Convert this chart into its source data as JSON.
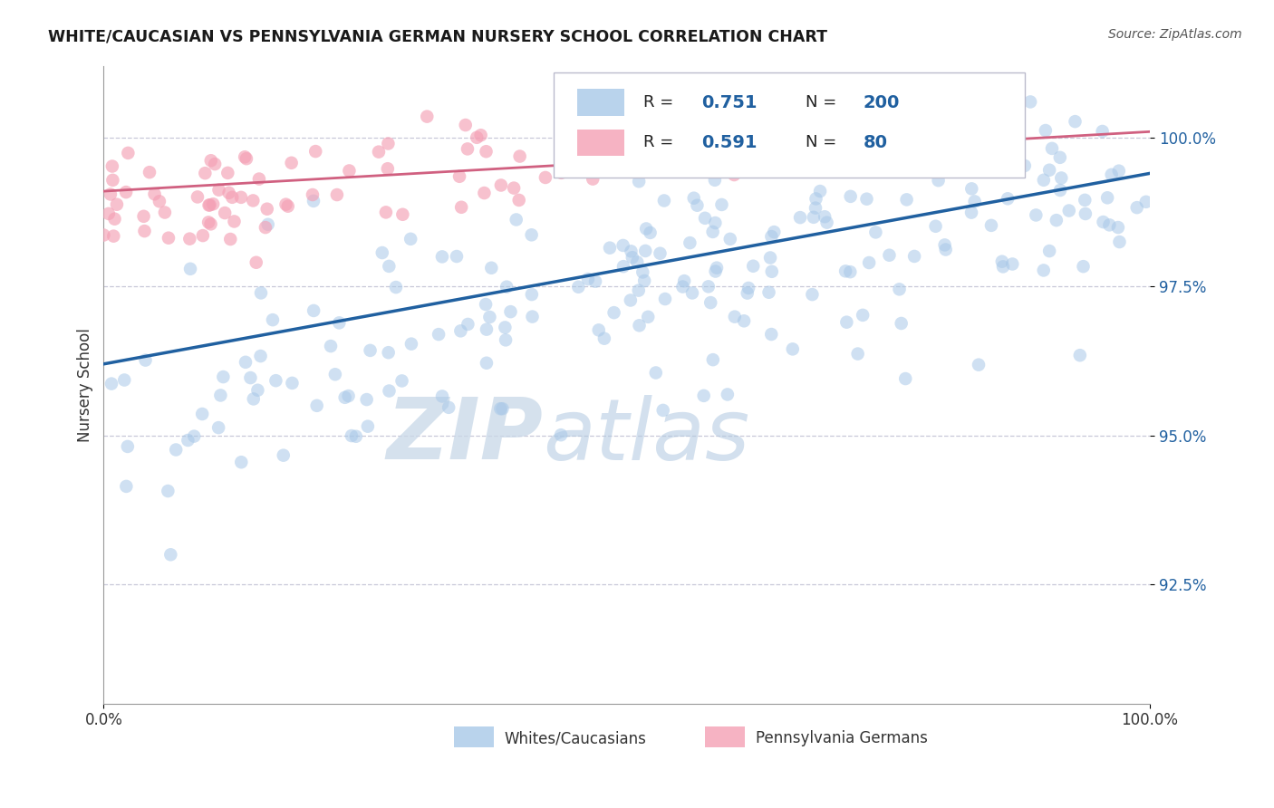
{
  "title": "WHITE/CAUCASIAN VS PENNSYLVANIA GERMAN NURSERY SCHOOL CORRELATION CHART",
  "source_text": "Source: ZipAtlas.com",
  "ylabel": "Nursery School",
  "watermark_zip": "ZIP",
  "watermark_atlas": "atlas",
  "blue_label": "Whites/Caucasians",
  "pink_label": "Pennsylvania Germans",
  "blue_R": 0.751,
  "blue_N": 200,
  "pink_R": 0.591,
  "pink_N": 80,
  "blue_color": "#a8c8e8",
  "pink_color": "#f4a0b5",
  "blue_line_color": "#2060a0",
  "pink_line_color": "#d06080",
  "xlim": [
    0.0,
    100.0
  ],
  "ylim": [
    90.5,
    101.2
  ],
  "yticks": [
    92.5,
    95.0,
    97.5,
    100.0
  ],
  "ytick_labels": [
    "92.5%",
    "95.0%",
    "97.5%",
    "100.0%"
  ],
  "xtick_labels": [
    "0.0%",
    "100.0%"
  ],
  "blue_line_x": [
    0.0,
    100.0
  ],
  "blue_line_y": [
    96.2,
    99.4
  ],
  "pink_line_x": [
    0.0,
    100.0
  ],
  "pink_line_y": [
    99.1,
    100.1
  ],
  "background_color": "#ffffff",
  "grid_color": "#c8c8d8"
}
